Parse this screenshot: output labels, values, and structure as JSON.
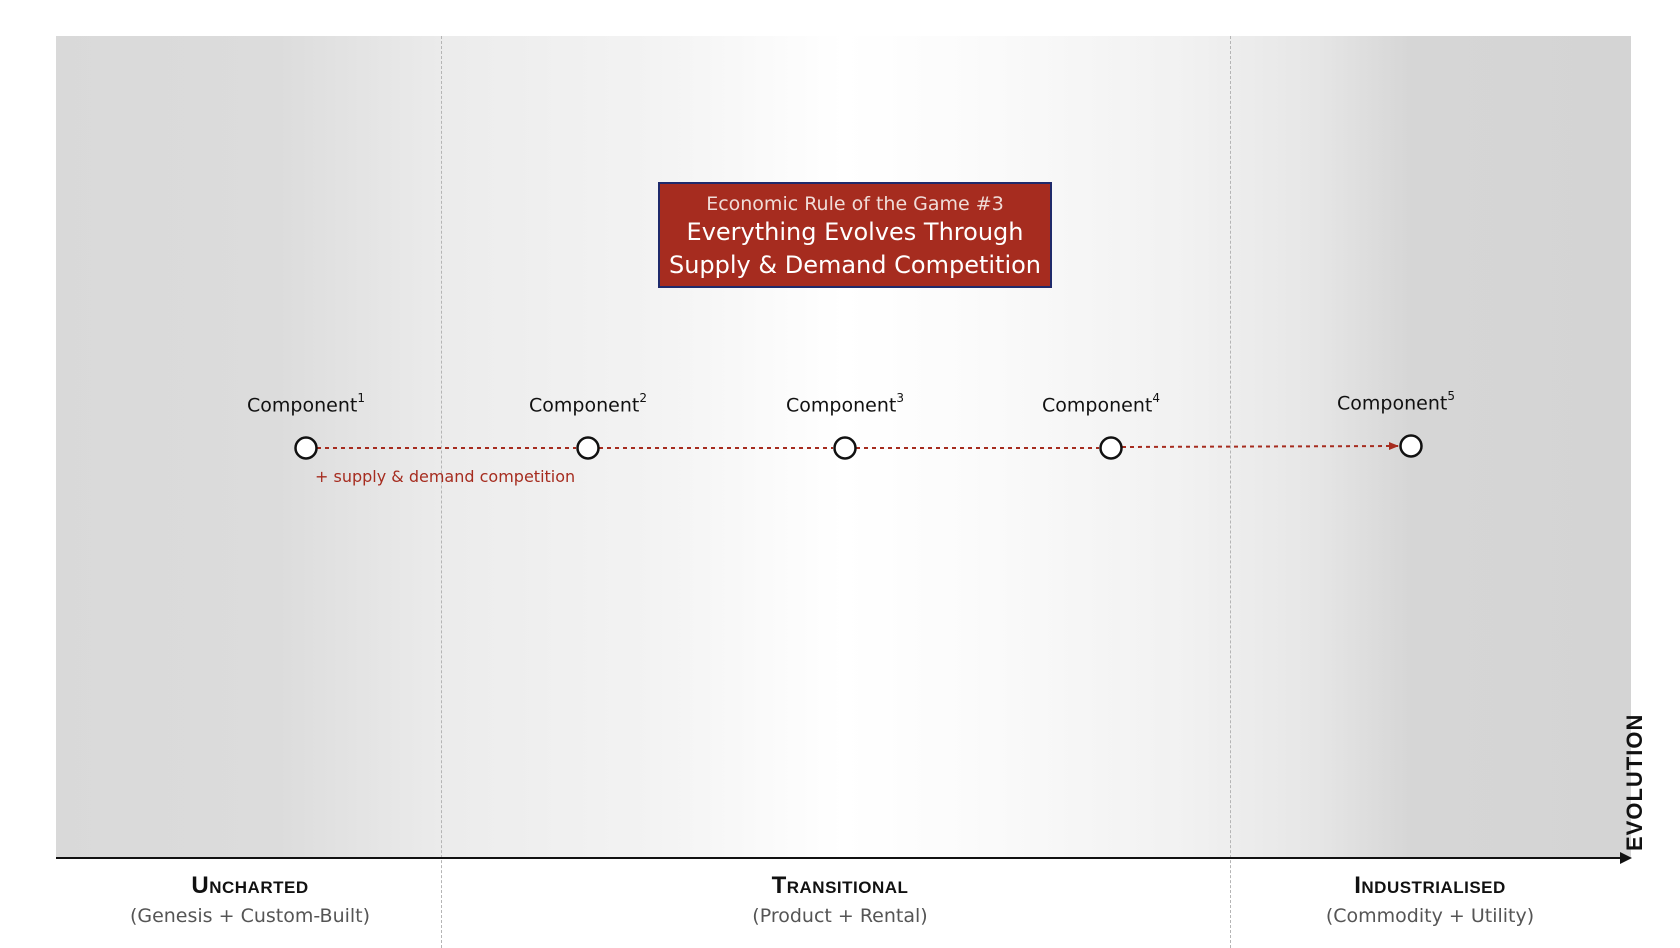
{
  "axis": {
    "title": "EVOLUTION",
    "stages": [
      {
        "title": "Uncharted",
        "subtitle": "(Genesis + Custom-Built)"
      },
      {
        "title": "Transitional",
        "subtitle": "(Product + Rental)"
      },
      {
        "title": "Industrialised",
        "subtitle": "(Commodity + Utility)"
      }
    ]
  },
  "rule": {
    "kicker": "Economic Rule of the Game #3",
    "title_line1": "Everything Evolves Through",
    "title_line2": "Supply & Demand Competition"
  },
  "components": [
    {
      "name": "Component",
      "index": "1"
    },
    {
      "name": "Component",
      "index": "2"
    },
    {
      "name": "Component",
      "index": "3"
    },
    {
      "name": "Component",
      "index": "4"
    },
    {
      "name": "Component",
      "index": "5"
    }
  ],
  "flow_note": "+ supply & demand competition",
  "colors": {
    "accent": "#a62c1f",
    "box_border": "#1f2a6b",
    "axis": "#111111"
  }
}
